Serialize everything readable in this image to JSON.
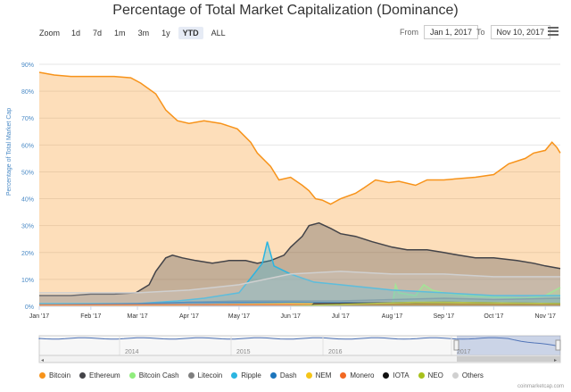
{
  "title": "Percentage of Total Market Capitalization (Dominance)",
  "zoom": {
    "label": "Zoom",
    "buttons": [
      "1d",
      "7d",
      "1m",
      "3m",
      "1y",
      "YTD",
      "ALL"
    ],
    "active": "YTD"
  },
  "range": {
    "from_label": "From",
    "from_value": "Jan 1, 2017",
    "to_label": "To",
    "to_value": "Nov 10, 2017"
  },
  "credit": "coinmarketcap.com",
  "chart_data": {
    "type": "area",
    "title": "Percentage of Total Market Capitalization (Dominance)",
    "ylabel": "Percentage of Total Market Cap",
    "xlabel": "",
    "ylim": [
      0,
      90
    ],
    "xlim": [
      "2017-01-01",
      "2017-11-10"
    ],
    "y_ticks": [
      "0%",
      "10%",
      "20%",
      "30%",
      "40%",
      "50%",
      "60%",
      "70%",
      "80%",
      "90%"
    ],
    "x_ticks": [
      {
        "date": "2017-01-01",
        "label": "Jan '17"
      },
      {
        "date": "2017-02-01",
        "label": "Feb '17"
      },
      {
        "date": "2017-03-01",
        "label": "Mar '17"
      },
      {
        "date": "2017-04-01",
        "label": "Apr '17"
      },
      {
        "date": "2017-05-01",
        "label": "May '17"
      },
      {
        "date": "2017-06-01",
        "label": "Jun '17"
      },
      {
        "date": "2017-07-01",
        "label": "Jul '17"
      },
      {
        "date": "2017-08-01",
        "label": "Aug '17"
      },
      {
        "date": "2017-09-01",
        "label": "Sep '17"
      },
      {
        "date": "2017-10-01",
        "label": "Oct '17"
      },
      {
        "date": "2017-11-01",
        "label": "Nov '17"
      }
    ],
    "grid": true,
    "legend_position": "bottom",
    "navigator_labels": [
      "2014",
      "2015",
      "2016",
      "2017"
    ],
    "series": [
      {
        "name": "Bitcoin",
        "color": "#f7931a",
        "points": [
          [
            "2017-01-01",
            87
          ],
          [
            "2017-01-10",
            86
          ],
          [
            "2017-01-20",
            85.5
          ],
          [
            "2017-02-01",
            85.5
          ],
          [
            "2017-02-15",
            85.5
          ],
          [
            "2017-02-25",
            85
          ],
          [
            "2017-03-03",
            83
          ],
          [
            "2017-03-12",
            79
          ],
          [
            "2017-03-18",
            73
          ],
          [
            "2017-03-25",
            69
          ],
          [
            "2017-04-01",
            68
          ],
          [
            "2017-04-10",
            69
          ],
          [
            "2017-04-20",
            68
          ],
          [
            "2017-04-30",
            66
          ],
          [
            "2017-05-08",
            61
          ],
          [
            "2017-05-12",
            57
          ],
          [
            "2017-05-20",
            52
          ],
          [
            "2017-05-25",
            47
          ],
          [
            "2017-06-01",
            48
          ],
          [
            "2017-06-08",
            45
          ],
          [
            "2017-06-12",
            43
          ],
          [
            "2017-06-16",
            40
          ],
          [
            "2017-06-20",
            39.5
          ],
          [
            "2017-06-25",
            38
          ],
          [
            "2017-07-01",
            40
          ],
          [
            "2017-07-10",
            42
          ],
          [
            "2017-07-15",
            44
          ],
          [
            "2017-07-22",
            47
          ],
          [
            "2017-07-30",
            46
          ],
          [
            "2017-08-05",
            46.5
          ],
          [
            "2017-08-15",
            45
          ],
          [
            "2017-08-22",
            47
          ],
          [
            "2017-09-01",
            47
          ],
          [
            "2017-09-10",
            47.5
          ],
          [
            "2017-09-20",
            48
          ],
          [
            "2017-10-01",
            49
          ],
          [
            "2017-10-10",
            53
          ],
          [
            "2017-10-20",
            55
          ],
          [
            "2017-10-25",
            57
          ],
          [
            "2017-11-01",
            58
          ],
          [
            "2017-11-05",
            61
          ],
          [
            "2017-11-08",
            59
          ],
          [
            "2017-11-10",
            57
          ]
        ]
      },
      {
        "name": "Ethereum",
        "color": "#434348",
        "points": [
          [
            "2017-01-01",
            4
          ],
          [
            "2017-01-20",
            4
          ],
          [
            "2017-02-01",
            4.5
          ],
          [
            "2017-02-15",
            4.5
          ],
          [
            "2017-02-28",
            5
          ],
          [
            "2017-03-08",
            8
          ],
          [
            "2017-03-12",
            13
          ],
          [
            "2017-03-18",
            18
          ],
          [
            "2017-03-22",
            19
          ],
          [
            "2017-03-28",
            18
          ],
          [
            "2017-04-05",
            17
          ],
          [
            "2017-04-15",
            16
          ],
          [
            "2017-04-25",
            17
          ],
          [
            "2017-05-05",
            17
          ],
          [
            "2017-05-12",
            16
          ],
          [
            "2017-05-20",
            17
          ],
          [
            "2017-05-28",
            19
          ],
          [
            "2017-06-01",
            22
          ],
          [
            "2017-06-08",
            26
          ],
          [
            "2017-06-12",
            30
          ],
          [
            "2017-06-18",
            31
          ],
          [
            "2017-06-25",
            29
          ],
          [
            "2017-07-01",
            27
          ],
          [
            "2017-07-10",
            26
          ],
          [
            "2017-07-20",
            24
          ],
          [
            "2017-08-01",
            22
          ],
          [
            "2017-08-10",
            21
          ],
          [
            "2017-08-22",
            21
          ],
          [
            "2017-09-01",
            20
          ],
          [
            "2017-09-10",
            19
          ],
          [
            "2017-09-20",
            18
          ],
          [
            "2017-10-01",
            18
          ],
          [
            "2017-10-15",
            17
          ],
          [
            "2017-10-25",
            16
          ],
          [
            "2017-11-01",
            15
          ],
          [
            "2017-11-10",
            14
          ]
        ]
      },
      {
        "name": "Bitcoin Cash",
        "color": "#90ed7d",
        "points": [
          [
            "2017-08-01",
            0
          ],
          [
            "2017-08-03",
            8
          ],
          [
            "2017-08-05",
            5
          ],
          [
            "2017-08-15",
            4
          ],
          [
            "2017-08-20",
            8
          ],
          [
            "2017-08-25",
            6
          ],
          [
            "2017-09-01",
            5
          ],
          [
            "2017-09-15",
            4
          ],
          [
            "2017-10-01",
            3.5
          ],
          [
            "2017-10-20",
            3
          ],
          [
            "2017-11-01",
            4
          ],
          [
            "2017-11-10",
            7
          ]
        ]
      },
      {
        "name": "Litecoin",
        "color": "#7f7f7f",
        "points": [
          [
            "2017-01-01",
            0.5
          ],
          [
            "2017-03-01",
            0.8
          ],
          [
            "2017-04-01",
            1.5
          ],
          [
            "2017-05-01",
            2
          ],
          [
            "2017-06-01",
            2
          ],
          [
            "2017-07-01",
            2
          ],
          [
            "2017-08-01",
            2.5
          ],
          [
            "2017-09-01",
            3
          ],
          [
            "2017-10-01",
            2.5
          ],
          [
            "2017-11-10",
            3
          ]
        ]
      },
      {
        "name": "Ripple",
        "color": "#2bb5e1",
        "points": [
          [
            "2017-01-01",
            1
          ],
          [
            "2017-03-01",
            1
          ],
          [
            "2017-03-25",
            2
          ],
          [
            "2017-04-10",
            3
          ],
          [
            "2017-05-01",
            5
          ],
          [
            "2017-05-10",
            12
          ],
          [
            "2017-05-15",
            16
          ],
          [
            "2017-05-18",
            24
          ],
          [
            "2017-05-22",
            15
          ],
          [
            "2017-06-01",
            12
          ],
          [
            "2017-06-15",
            9
          ],
          [
            "2017-07-01",
            8
          ],
          [
            "2017-08-01",
            6
          ],
          [
            "2017-09-01",
            5
          ],
          [
            "2017-10-01",
            4
          ],
          [
            "2017-11-10",
            4
          ]
        ]
      },
      {
        "name": "Dash",
        "color": "#1c75bc",
        "points": [
          [
            "2017-01-01",
            0.5
          ],
          [
            "2017-03-01",
            1
          ],
          [
            "2017-04-01",
            1.5
          ],
          [
            "2017-06-01",
            1.5
          ],
          [
            "2017-08-01",
            1.2
          ],
          [
            "2017-11-10",
            1
          ]
        ]
      },
      {
        "name": "NEM",
        "color": "#f5c518",
        "points": [
          [
            "2017-01-01",
            0.1
          ],
          [
            "2017-04-01",
            0.5
          ],
          [
            "2017-06-01",
            1
          ],
          [
            "2017-09-01",
            1
          ],
          [
            "2017-11-10",
            0.8
          ]
        ]
      },
      {
        "name": "Monero",
        "color": "#f26822",
        "points": [
          [
            "2017-01-01",
            0.5
          ],
          [
            "2017-06-01",
            0.6
          ],
          [
            "2017-11-10",
            0.5
          ]
        ]
      },
      {
        "name": "IOTA",
        "color": "#111111",
        "points": [
          [
            "2017-06-13",
            0
          ],
          [
            "2017-06-15",
            1
          ],
          [
            "2017-09-01",
            1.5
          ],
          [
            "2017-11-10",
            1
          ]
        ]
      },
      {
        "name": "NEO",
        "color": "#a8c11c",
        "points": [
          [
            "2017-06-01",
            0.1
          ],
          [
            "2017-08-15",
            1.5
          ],
          [
            "2017-09-01",
            1.5
          ],
          [
            "2017-11-10",
            1
          ]
        ]
      },
      {
        "name": "Others",
        "color": "#d0d0d0",
        "points": [
          [
            "2017-01-01",
            5
          ],
          [
            "2017-03-01",
            5
          ],
          [
            "2017-04-01",
            6
          ],
          [
            "2017-05-01",
            8
          ],
          [
            "2017-06-01",
            12
          ],
          [
            "2017-07-01",
            13
          ],
          [
            "2017-08-01",
            12
          ],
          [
            "2017-09-01",
            12
          ],
          [
            "2017-10-01",
            11
          ],
          [
            "2017-11-10",
            11
          ]
        ]
      }
    ]
  }
}
